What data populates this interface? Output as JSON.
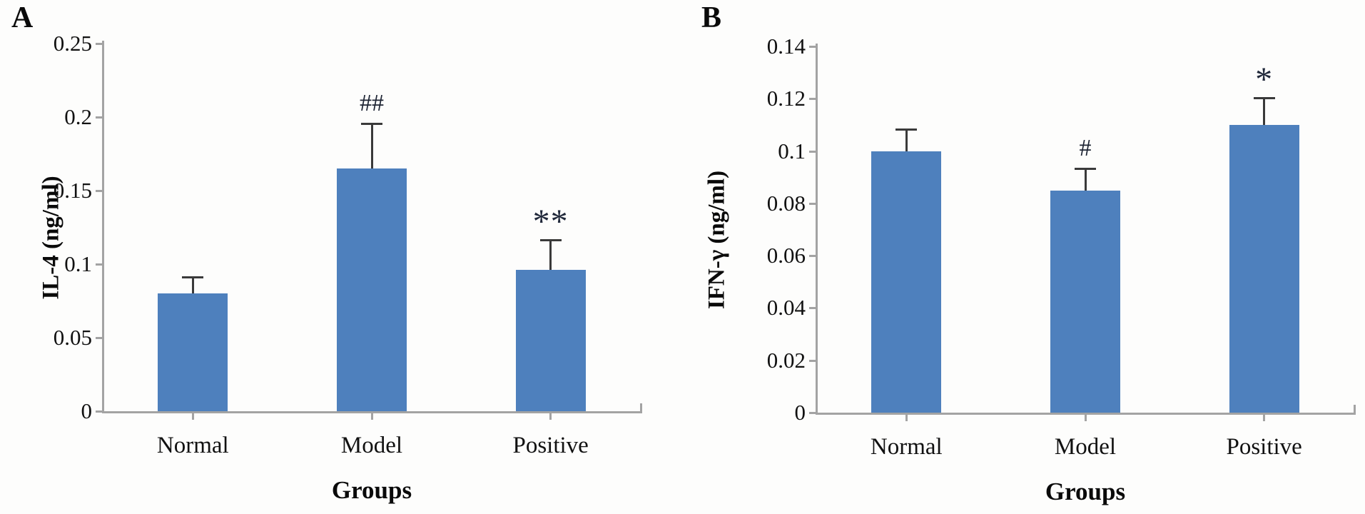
{
  "figure": {
    "background": "#fdfdfc",
    "panel_letters": [
      "A",
      "B"
    ]
  },
  "chart_data": [
    {
      "type": "bar",
      "panel": "A",
      "title": "",
      "categories": [
        "Normal",
        "Model",
        "Positive"
      ],
      "values": [
        0.08,
        0.165,
        0.096
      ],
      "errors_plus": [
        0.011,
        0.03,
        0.02
      ],
      "annotations": [
        "",
        "##",
        "**"
      ],
      "ylabel": "IL-4 (ng/ml)",
      "xlabel": "Groups",
      "ylim": [
        0,
        0.25
      ],
      "yticks": [
        0,
        0.05,
        0.1,
        0.15,
        0.2,
        0.25
      ],
      "ytick_labels": [
        "0",
        "0.05",
        "0.1",
        "0.15",
        "0.2",
        "0.25"
      ],
      "grid": false,
      "legend": null,
      "bar_color": "#4e80bd",
      "error_color": "#3a3a3a",
      "axis_color": "#a3a3a3"
    },
    {
      "type": "bar",
      "panel": "B",
      "title": "",
      "categories": [
        "Normal",
        "Model",
        "Positive"
      ],
      "values": [
        0.1,
        0.085,
        0.11
      ],
      "errors_plus": [
        0.008,
        0.008,
        0.01
      ],
      "annotations": [
        "",
        "#",
        "*"
      ],
      "ylabel": "IFN-γ (ng/ml)",
      "xlabel": "Groups",
      "ylim": [
        0,
        0.14
      ],
      "yticks": [
        0,
        0.02,
        0.04,
        0.06,
        0.08,
        0.1,
        0.12,
        0.14
      ],
      "ytick_labels": [
        "0",
        "0.02",
        "0.04",
        "0.06",
        "0.08",
        "0.1",
        "0.12",
        "0.14"
      ],
      "grid": false,
      "legend": null,
      "bar_color": "#4e80bd",
      "error_color": "#3a3a3a",
      "axis_color": "#a3a3a3"
    }
  ]
}
